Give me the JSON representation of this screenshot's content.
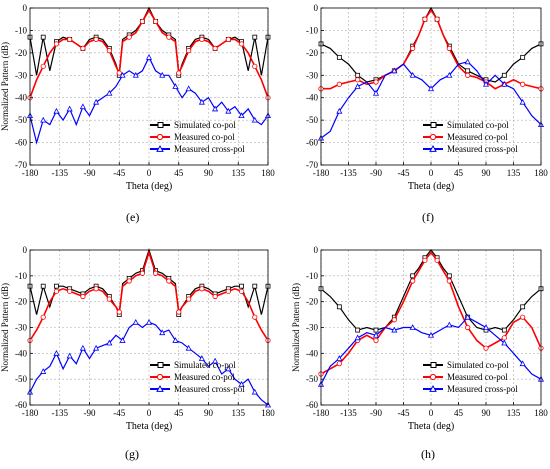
{
  "colors": {
    "simulated": "#000000",
    "measured_co": "#ff0000",
    "measured_cross": "#0000ff",
    "grid": "#b0b0b0"
  },
  "chart_data": [
    {
      "panel": "(e)",
      "type": "line",
      "xlabel": "Theta (deg)",
      "ylabel": "Normalized Pattern (dB)",
      "xlim": [
        -180,
        180
      ],
      "ylim": [
        -70,
        0
      ],
      "xticks": [
        -180,
        -135,
        -90,
        -45,
        0,
        45,
        90,
        135,
        180
      ],
      "yticks": [
        -70,
        -60,
        -50,
        -40,
        -30,
        -20,
        -10,
        0
      ],
      "grid": true,
      "legend_position": "bottom-right",
      "series": [
        {
          "name": "Simulated co-pol",
          "color": "#000000",
          "marker": "square",
          "x": [
            -180,
            -170,
            -160,
            -150,
            -140,
            -130,
            -120,
            -110,
            -100,
            -90,
            -80,
            -70,
            -60,
            -50,
            -45,
            -40,
            -30,
            -20,
            -10,
            0,
            10,
            20,
            30,
            40,
            45,
            50,
            60,
            70,
            80,
            90,
            100,
            110,
            120,
            130,
            140,
            150,
            160,
            170,
            180
          ],
          "y": [
            -13,
            -30,
            -13,
            -28,
            -15,
            -13,
            -14,
            -16,
            -18,
            -14,
            -13,
            -14,
            -18,
            -25,
            -30,
            -14,
            -12,
            -10,
            -6,
            0,
            -6,
            -10,
            -12,
            -14,
            -30,
            -25,
            -18,
            -14,
            -13,
            -14,
            -18,
            -16,
            -14,
            -13,
            -15,
            -28,
            -13,
            -30,
            -13
          ]
        },
        {
          "name": "Measured co-pol",
          "color": "#ff0000",
          "marker": "circle",
          "x": [
            -180,
            -170,
            -160,
            -150,
            -140,
            -130,
            -120,
            -110,
            -100,
            -90,
            -80,
            -70,
            -60,
            -50,
            -45,
            -40,
            -30,
            -20,
            -10,
            0,
            10,
            20,
            30,
            40,
            45,
            50,
            60,
            70,
            80,
            90,
            100,
            110,
            120,
            130,
            140,
            150,
            160,
            170,
            180
          ],
          "y": [
            -40,
            -32,
            -26,
            -20,
            -16,
            -14,
            -14,
            -16,
            -18,
            -15,
            -14,
            -15,
            -19,
            -26,
            -29,
            -15,
            -13,
            -11,
            -6,
            -1,
            -6,
            -11,
            -13,
            -15,
            -29,
            -26,
            -19,
            -15,
            -14,
            -15,
            -18,
            -16,
            -14,
            -14,
            -16,
            -20,
            -26,
            -32,
            -40
          ]
        },
        {
          "name": "Measured cross-pol",
          "color": "#0000ff",
          "marker": "triangle",
          "x": [
            -180,
            -170,
            -160,
            -150,
            -140,
            -130,
            -120,
            -110,
            -100,
            -90,
            -80,
            -70,
            -60,
            -50,
            -40,
            -30,
            -20,
            -10,
            0,
            10,
            20,
            30,
            40,
            50,
            60,
            70,
            80,
            90,
            100,
            110,
            120,
            130,
            140,
            150,
            160,
            170,
            180
          ],
          "y": [
            -48,
            -60,
            -50,
            -52,
            -46,
            -50,
            -45,
            -52,
            -44,
            -48,
            -42,
            -40,
            -38,
            -35,
            -30,
            -28,
            -30,
            -28,
            -22,
            -28,
            -30,
            -30,
            -35,
            -40,
            -36,
            -38,
            -42,
            -40,
            -45,
            -42,
            -46,
            -44,
            -48,
            -45,
            -50,
            -52,
            -48
          ]
        }
      ]
    },
    {
      "panel": "(f)",
      "type": "line",
      "xlabel": "Theta (deg)",
      "ylabel": "",
      "xlim": [
        -180,
        180
      ],
      "ylim": [
        -70,
        0
      ],
      "xticks": [
        -180,
        -135,
        -90,
        -45,
        0,
        45,
        90,
        135,
        180
      ],
      "yticks": [
        -70,
        -60,
        -50,
        -40,
        -30,
        -20,
        -10,
        0
      ],
      "grid": true,
      "legend_position": "bottom-right",
      "series": [
        {
          "name": "Simulated co-pol",
          "color": "#000000",
          "marker": "square",
          "x": [
            -180,
            -165,
            -150,
            -135,
            -120,
            -105,
            -90,
            -75,
            -60,
            -45,
            -30,
            -20,
            -10,
            0,
            10,
            20,
            30,
            45,
            60,
            75,
            90,
            105,
            120,
            135,
            150,
            165,
            180
          ],
          "y": [
            -16,
            -18,
            -22,
            -25,
            -30,
            -33,
            -32,
            -30,
            -28,
            -25,
            -17,
            -12,
            -5,
            0,
            -5,
            -12,
            -17,
            -25,
            -28,
            -30,
            -32,
            -33,
            -30,
            -25,
            -22,
            -18,
            -16
          ]
        },
        {
          "name": "Measured co-pol",
          "color": "#ff0000",
          "marker": "circle",
          "x": [
            -180,
            -165,
            -150,
            -135,
            -120,
            -105,
            -90,
            -75,
            -60,
            -45,
            -30,
            -20,
            -10,
            0,
            10,
            20,
            30,
            45,
            60,
            75,
            90,
            105,
            120,
            135,
            150,
            165,
            180
          ],
          "y": [
            -36,
            -36,
            -34,
            -33,
            -32,
            -34,
            -33,
            -30,
            -28,
            -25,
            -18,
            -12,
            -5,
            -1,
            -5,
            -12,
            -18,
            -26,
            -30,
            -31,
            -33,
            -36,
            -34,
            -32,
            -34,
            -35,
            -36
          ]
        },
        {
          "name": "Measured cross-pol",
          "color": "#0000ff",
          "marker": "triangle",
          "x": [
            -180,
            -165,
            -150,
            -135,
            -120,
            -105,
            -90,
            -75,
            -60,
            -45,
            -30,
            -15,
            0,
            15,
            30,
            45,
            60,
            75,
            90,
            105,
            120,
            135,
            150,
            165,
            180
          ],
          "y": [
            -58,
            -55,
            -46,
            -40,
            -35,
            -33,
            -38,
            -30,
            -28,
            -25,
            -30,
            -32,
            -36,
            -32,
            -30,
            -25,
            -24,
            -28,
            -34,
            -30,
            -34,
            -36,
            -42,
            -48,
            -52
          ]
        }
      ]
    },
    {
      "panel": "(g)",
      "type": "line",
      "xlabel": "Theta (deg)",
      "ylabel": "Normalized Pattern (dB)",
      "xlim": [
        -180,
        180
      ],
      "ylim": [
        -60,
        0
      ],
      "xticks": [
        -180,
        -135,
        -90,
        -45,
        0,
        45,
        90,
        135,
        180
      ],
      "yticks": [
        -60,
        -50,
        -40,
        -30,
        -20,
        -10,
        0
      ],
      "grid": true,
      "legend_position": "bottom-right",
      "series": [
        {
          "name": "Simulated co-pol",
          "color": "#000000",
          "marker": "square",
          "x": [
            -180,
            -170,
            -160,
            -150,
            -140,
            -130,
            -120,
            -110,
            -100,
            -90,
            -80,
            -70,
            -60,
            -50,
            -45,
            -40,
            -30,
            -20,
            -10,
            0,
            10,
            20,
            30,
            40,
            45,
            50,
            60,
            70,
            80,
            90,
            100,
            110,
            120,
            130,
            140,
            150,
            160,
            170,
            180
          ],
          "y": [
            -14,
            -25,
            -14,
            -22,
            -14,
            -14,
            -15,
            -16,
            -17,
            -15,
            -14,
            -15,
            -18,
            -22,
            -25,
            -13,
            -11,
            -9,
            -8,
            0,
            -8,
            -9,
            -11,
            -13,
            -25,
            -22,
            -18,
            -15,
            -14,
            -15,
            -17,
            -16,
            -15,
            -14,
            -14,
            -22,
            -14,
            -25,
            -14
          ]
        },
        {
          "name": "Measured co-pol",
          "color": "#ff0000",
          "marker": "circle",
          "x": [
            -180,
            -170,
            -160,
            -150,
            -140,
            -130,
            -120,
            -110,
            -100,
            -90,
            -80,
            -70,
            -60,
            -50,
            -45,
            -40,
            -30,
            -20,
            -10,
            0,
            10,
            20,
            30,
            40,
            45,
            50,
            60,
            70,
            80,
            90,
            100,
            110,
            120,
            130,
            140,
            150,
            160,
            170,
            180
          ],
          "y": [
            -35,
            -31,
            -26,
            -20,
            -16,
            -15,
            -16,
            -17,
            -18,
            -16,
            -15,
            -16,
            -19,
            -22,
            -24,
            -14,
            -12,
            -10,
            -9,
            -1,
            -9,
            -10,
            -12,
            -14,
            -24,
            -22,
            -19,
            -16,
            -15,
            -16,
            -18,
            -17,
            -16,
            -15,
            -16,
            -20,
            -26,
            -31,
            -35
          ]
        },
        {
          "name": "Measured cross-pol",
          "color": "#0000ff",
          "marker": "triangle",
          "x": [
            -180,
            -170,
            -160,
            -150,
            -140,
            -130,
            -120,
            -110,
            -100,
            -90,
            -80,
            -70,
            -60,
            -50,
            -40,
            -30,
            -20,
            -10,
            0,
            10,
            20,
            30,
            40,
            50,
            60,
            70,
            80,
            90,
            100,
            110,
            120,
            130,
            140,
            150,
            160,
            170,
            180
          ],
          "y": [
            -55,
            -50,
            -47,
            -45,
            -40,
            -46,
            -41,
            -44,
            -38,
            -42,
            -38,
            -37,
            -36,
            -33,
            -35,
            -30,
            -28,
            -30,
            -28,
            -29,
            -32,
            -31,
            -35,
            -36,
            -38,
            -40,
            -42,
            -45,
            -43,
            -48,
            -46,
            -50,
            -52,
            -50,
            -55,
            -58,
            -60
          ]
        }
      ]
    },
    {
      "panel": "(h)",
      "type": "line",
      "xlabel": "Theta (deg)",
      "ylabel": "Normalized Pattern (dB)",
      "xlim": [
        -180,
        180
      ],
      "ylim": [
        -60,
        0
      ],
      "xticks": [
        -180,
        -135,
        -90,
        -45,
        0,
        45,
        90,
        135,
        180
      ],
      "yticks": [
        -60,
        -50,
        -40,
        -30,
        -20,
        -10,
        0
      ],
      "grid": true,
      "legend_position": "bottom-right",
      "series": [
        {
          "name": "Simulated co-pol",
          "color": "#000000",
          "marker": "square",
          "x": [
            -180,
            -165,
            -150,
            -135,
            -120,
            -105,
            -90,
            -75,
            -60,
            -45,
            -30,
            -20,
            -10,
            0,
            10,
            20,
            30,
            45,
            60,
            75,
            90,
            105,
            120,
            135,
            150,
            165,
            180
          ],
          "y": [
            -15,
            -18,
            -22,
            -27,
            -31,
            -30,
            -31,
            -30,
            -26,
            -18,
            -10,
            -7,
            -3,
            0,
            -3,
            -7,
            -10,
            -18,
            -26,
            -30,
            -31,
            -30,
            -31,
            -27,
            -22,
            -18,
            -15
          ]
        },
        {
          "name": "Measured co-pol",
          "color": "#ff0000",
          "marker": "circle",
          "x": [
            -180,
            -165,
            -150,
            -135,
            -120,
            -105,
            -90,
            -75,
            -60,
            -45,
            -30,
            -20,
            -10,
            0,
            10,
            20,
            30,
            45,
            60,
            75,
            90,
            105,
            120,
            135,
            150,
            165,
            180
          ],
          "y": [
            -48,
            -46,
            -44,
            -40,
            -35,
            -33,
            -35,
            -30,
            -27,
            -20,
            -12,
            -8,
            -4,
            -1,
            -4,
            -8,
            -12,
            -22,
            -30,
            -35,
            -38,
            -36,
            -34,
            -28,
            -26,
            -30,
            -38
          ]
        },
        {
          "name": "Measured cross-pol",
          "color": "#0000ff",
          "marker": "triangle",
          "x": [
            -180,
            -165,
            -150,
            -135,
            -120,
            -105,
            -90,
            -75,
            -60,
            -45,
            -30,
            -15,
            0,
            15,
            30,
            45,
            60,
            75,
            90,
            105,
            120,
            135,
            150,
            165,
            180
          ],
          "y": [
            -52,
            -45,
            -42,
            -38,
            -34,
            -32,
            -33,
            -30,
            -31,
            -30,
            -30,
            -32,
            -33,
            -31,
            -29,
            -30,
            -26,
            -28,
            -30,
            -33,
            -36,
            -40,
            -44,
            -48,
            -50
          ]
        }
      ]
    }
  ]
}
